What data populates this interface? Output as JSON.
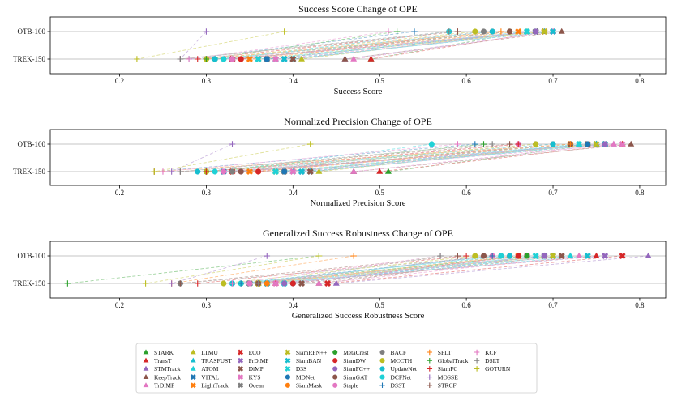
{
  "chart_data": {
    "type": "dumbbell",
    "categories": [
      "OTB-100",
      "TREK-150"
    ],
    "legend_position": "bottom",
    "grid": true,
    "xticks": [
      0.2,
      0.3,
      0.4,
      0.5,
      0.6,
      0.7,
      0.8
    ],
    "trackers": [
      {
        "name": "STARK",
        "color": "#2ca02c",
        "marker": "triangle"
      },
      {
        "name": "TransT",
        "color": "#d62728",
        "marker": "triangle"
      },
      {
        "name": "STMTrack",
        "color": "#9467bd",
        "marker": "triangle"
      },
      {
        "name": "KeepTrack",
        "color": "#8c564b",
        "marker": "triangle"
      },
      {
        "name": "TrDiMP",
        "color": "#e377c2",
        "marker": "triangle"
      },
      {
        "name": "LTMU",
        "color": "#bcbd22",
        "marker": "triangle"
      },
      {
        "name": "TRASFUST",
        "color": "#17becf",
        "marker": "triangle"
      },
      {
        "name": "ATOM",
        "color": "#1fd1d6",
        "marker": "triangle"
      },
      {
        "name": "VITAL",
        "color": "#1f77b4",
        "marker": "x"
      },
      {
        "name": "LightTrack",
        "color": "#ff7f0e",
        "marker": "x"
      },
      {
        "name": "ECO",
        "color": "#d62728",
        "marker": "x"
      },
      {
        "name": "PrDiMP",
        "color": "#9467bd",
        "marker": "x"
      },
      {
        "name": "DiMP",
        "color": "#8c564b",
        "marker": "x"
      },
      {
        "name": "KYS",
        "color": "#e377c2",
        "marker": "x"
      },
      {
        "name": "Ocean",
        "color": "#7f7f7f",
        "marker": "x"
      },
      {
        "name": "SiamRPN++",
        "color": "#bcbd22",
        "marker": "x"
      },
      {
        "name": "SiamBAN",
        "color": "#17becf",
        "marker": "x"
      },
      {
        "name": "D3S",
        "color": "#1fd1d6",
        "marker": "x"
      },
      {
        "name": "MDNet",
        "color": "#1f77b4",
        "marker": "circle"
      },
      {
        "name": "SiamMask",
        "color": "#ff7f0e",
        "marker": "circle"
      },
      {
        "name": "MetaCrest",
        "color": "#2ca02c",
        "marker": "circle"
      },
      {
        "name": "SiamDW",
        "color": "#d62728",
        "marker": "circle"
      },
      {
        "name": "SiamFC++",
        "color": "#9467bd",
        "marker": "circle"
      },
      {
        "name": "SiamGAT",
        "color": "#8c564b",
        "marker": "circle"
      },
      {
        "name": "Staple",
        "color": "#e377c2",
        "marker": "circle"
      },
      {
        "name": "BACF",
        "color": "#7f7f7f",
        "marker": "circle"
      },
      {
        "name": "MCCTH",
        "color": "#bcbd22",
        "marker": "circle"
      },
      {
        "name": "UpdateNet",
        "color": "#17becf",
        "marker": "circle"
      },
      {
        "name": "DCFNet",
        "color": "#1fd1d6",
        "marker": "circle"
      },
      {
        "name": "DSST",
        "color": "#1f77b4",
        "marker": "plus"
      },
      {
        "name": "SPLT",
        "color": "#ff7f0e",
        "marker": "plus"
      },
      {
        "name": "GlobalTrack",
        "color": "#2ca02c",
        "marker": "plus"
      },
      {
        "name": "SiamFC",
        "color": "#d62728",
        "marker": "plus"
      },
      {
        "name": "MOSSE",
        "color": "#9467bd",
        "marker": "plus"
      },
      {
        "name": "STRCF",
        "color": "#8c564b",
        "marker": "plus"
      },
      {
        "name": "KCF",
        "color": "#e377c2",
        "marker": "plus"
      },
      {
        "name": "DSLT",
        "color": "#7f7f7f",
        "marker": "plus"
      },
      {
        "name": "GOTURN",
        "color": "#bcbd22",
        "marker": "plus"
      }
    ],
    "panels": [
      {
        "title": "Success Score Change of OPE",
        "xlabel": "Success Score",
        "xlim": [
          0.12,
          0.83
        ],
        "otb": [
          0.67,
          0.69,
          0.7,
          0.71,
          0.7,
          0.67,
          0.69,
          0.67,
          0.68,
          0.66,
          0.69,
          0.7,
          0.68,
          0.7,
          0.68,
          0.69,
          0.7,
          0.67,
          0.68,
          0.65,
          0.65,
          0.63,
          0.68,
          0.65,
          0.58,
          0.62,
          0.61,
          0.63,
          0.58,
          0.54,
          0.64,
          0.52,
          0.59,
          0.3,
          0.59,
          0.51,
          0.58,
          0.39
        ],
        "trek": [
          0.49,
          0.49,
          0.46,
          0.46,
          0.47,
          0.41,
          0.4,
          0.38,
          0.33,
          0.35,
          0.33,
          0.39,
          0.4,
          0.38,
          0.37,
          0.36,
          0.39,
          0.36,
          0.37,
          0.34,
          0.31,
          0.34,
          0.33,
          0.33,
          0.33,
          0.32,
          0.3,
          0.31,
          0.32,
          0.28,
          0.3,
          0.3,
          0.29,
          0.27,
          0.27,
          0.28,
          0.27,
          0.22
        ]
      },
      {
        "title": "Normalized Precision Change of OPE",
        "xlabel": "Normalized Precision Score",
        "xlim": [
          0.12,
          0.83
        ],
        "otb": [
          0.75,
          0.78,
          0.77,
          0.79,
          0.77,
          0.73,
          0.75,
          0.73,
          0.75,
          0.72,
          0.76,
          0.76,
          0.74,
          0.78,
          0.76,
          0.75,
          0.76,
          0.73,
          0.74,
          0.72,
          0.72,
          0.7,
          0.76,
          0.72,
          0.66,
          0.68,
          0.68,
          0.7,
          0.56,
          0.61,
          0.72,
          0.62,
          0.66,
          0.33,
          0.65,
          0.59,
          0.63,
          0.42
        ],
        "trek": [
          0.51,
          0.5,
          0.47,
          0.47,
          0.47,
          0.43,
          0.42,
          0.4,
          0.32,
          0.35,
          0.33,
          0.41,
          0.42,
          0.4,
          0.39,
          0.38,
          0.41,
          0.38,
          0.39,
          0.36,
          0.3,
          0.36,
          0.34,
          0.34,
          0.32,
          0.33,
          0.3,
          0.29,
          0.31,
          0.24,
          0.24,
          0.3,
          0.3,
          0.26,
          0.27,
          0.25,
          0.27,
          0.24
        ]
      },
      {
        "title": "Generalized Success Robustness Change of OPE",
        "xlabel": "Generalized Success Robustness Score",
        "xlim": [
          0.12,
          0.83
        ],
        "otb": [
          0.67,
          0.75,
          0.81,
          0.69,
          0.73,
          0.7,
          0.72,
          0.72,
          0.7,
          0.66,
          0.78,
          0.76,
          0.71,
          0.67,
          0.69,
          0.7,
          0.74,
          0.68,
          0.69,
          0.65,
          0.67,
          0.66,
          0.69,
          0.62,
          0.63,
          0.64,
          0.61,
          0.65,
          0.64,
          0.63,
          0.47,
          0.43,
          0.6,
          0.37,
          0.59,
          0.57,
          0.57,
          0.43
        ],
        "trek": [
          0.36,
          0.38,
          0.45,
          0.43,
          0.43,
          0.37,
          0.35,
          0.36,
          0.35,
          0.36,
          0.44,
          0.37,
          0.41,
          0.38,
          0.35,
          0.36,
          0.37,
          0.39,
          0.4,
          0.37,
          0.34,
          0.4,
          0.39,
          0.36,
          0.35,
          0.27,
          0.32,
          0.33,
          0.34,
          0.34,
          0.26,
          0.14,
          0.29,
          0.26,
          0.27,
          0.33,
          0.36,
          0.23
        ]
      }
    ]
  }
}
